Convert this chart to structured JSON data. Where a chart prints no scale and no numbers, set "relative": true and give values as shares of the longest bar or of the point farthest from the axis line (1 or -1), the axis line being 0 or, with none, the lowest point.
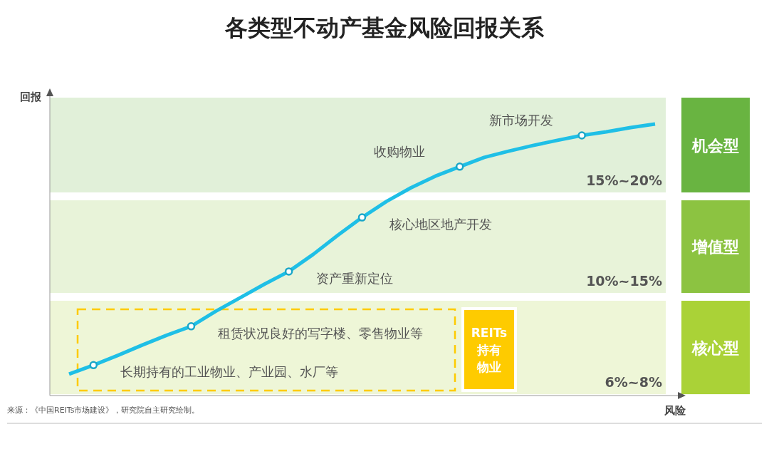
{
  "chart_data": {
    "type": "line",
    "title": "各类型不动产基金风险回报关系",
    "xlabel": "风险",
    "ylabel": "回报",
    "relative": true,
    "marker": "none",
    "line_style": "solid",
    "categories": [
      null,
      null,
      null,
      null,
      null,
      null,
      null,
      null,
      null,
      null,
      null,
      null,
      null,
      null,
      null,
      null,
      null,
      null,
      null,
      null,
      null,
      null,
      null,
      null,
      null
    ],
    "series": [
      {
        "color": "#1fbfe6",
        "values": [
          0.079,
          0.112,
          0.148,
          0.186,
          0.222,
          0.255,
          0.31,
          0.36,
          0.41,
          0.457,
          0.52,
          0.59,
          0.656,
          0.715,
          0.765,
          0.808,
          0.843,
          0.877,
          0.9,
          0.921,
          0.94,
          0.958,
          0.971,
          0.987,
          1
        ]
      }
    ],
    "bands": [
      {
        "axis": "y",
        "from": 0.005,
        "to": 0.349,
        "label": "核心型",
        "color": "#eef6d7"
      },
      {
        "axis": "y",
        "from": 0.378,
        "to": 0.719,
        "label": "增值型",
        "color": "#e8f3d9"
      },
      {
        "axis": "y",
        "from": 0.748,
        "to": 1.097,
        "label": "机会型",
        "color": "#e1f0d9"
      }
    ],
    "annotations": [
      "长期持有的工业物业、产业园、水厂等",
      "租赁状况良好的写字楼、零售物业等",
      "资产重新定位",
      "核心地区地产开发",
      "收购物业",
      "新市场开发",
      "6%~8%",
      "10%~15%",
      "15%~20%",
      "REITs持有物业",
      "来源：《中国REITs市场建设》，研究院自主研究绘制。"
    ]
  }
}
